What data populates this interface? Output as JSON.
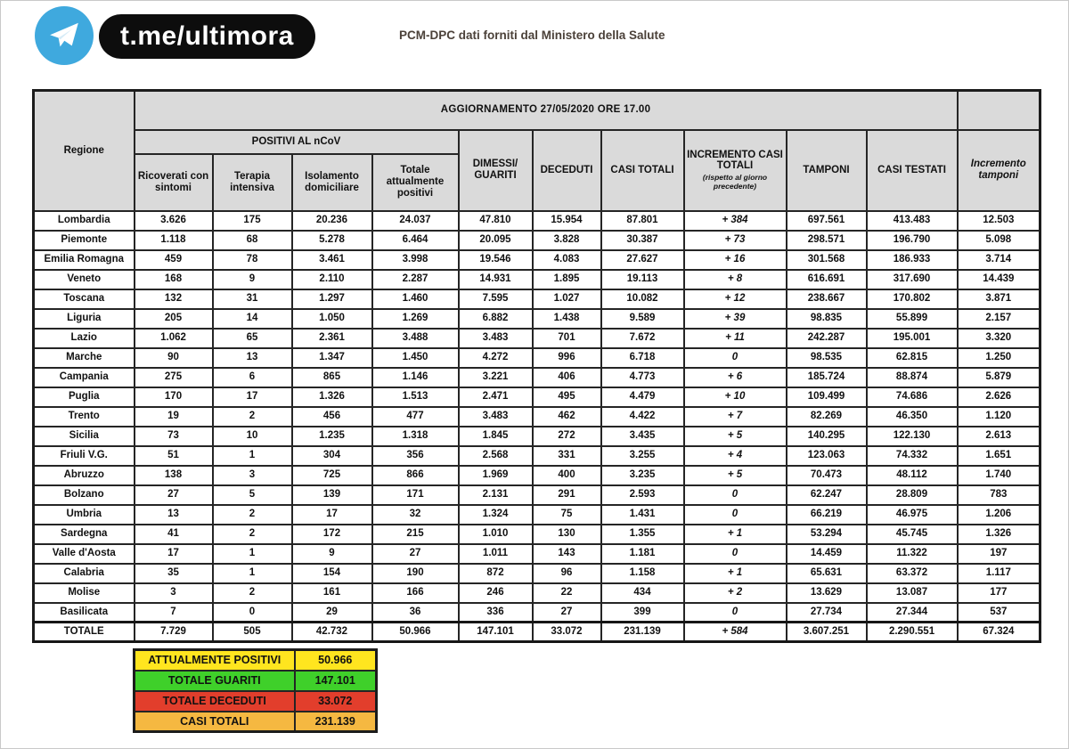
{
  "brand": {
    "channel": "t.me/ultimora",
    "source_note": "PCM-DPC dati forniti dal Ministero della Salute"
  },
  "colors": {
    "telegram_blue": "#3fa9de",
    "pill_black": "#0d0d0d",
    "yellow": "#ffe51f",
    "green": "#3fd02a",
    "red": "#e23e2c",
    "orange": "#f5b841",
    "gray": "#d2d2d2",
    "header_gray": "#dadada",
    "header_dark_gray": "#bfbfbf"
  },
  "headers": {
    "region": "Regione",
    "positivi_group": "POSITIVI AL nCoV",
    "ricoverati": "Ricoverati con sintomi",
    "terapia": "Terapia intensiva",
    "isolamento": "Isolamento domiciliare",
    "totale_positivi": "Totale attualmente positivi",
    "dimessi": "DIMESSI/ GUARITI",
    "deceduti": "DECEDUTI",
    "casi_totali": "CASI TOTALI",
    "incremento": "INCREMENTO CASI  TOTALI",
    "incremento_note": "(rispetto al giorno precedente)",
    "tamponi": "TAMPONI",
    "casi_testati": "CASI TESTATI",
    "incremento_tamponi": "Incremento tamponi"
  },
  "chart_data": {
    "type": "table",
    "title": "AGGIORNAMENTO 27/05/2020 ORE 17.00",
    "columns": [
      "Regione",
      "Ricoverati con sintomi",
      "Terapia intensiva",
      "Isolamento domiciliare",
      "Totale attualmente positivi",
      "DIMESSI/GUARITI",
      "DECEDUTI",
      "CASI TOTALI",
      "INCREMENTO CASI TOTALI (rispetto al giorno precedente)",
      "TAMPONI",
      "CASI TESTATI",
      "Incremento tamponi"
    ],
    "rows": [
      [
        "Lombardia",
        "3.626",
        "175",
        "20.236",
        "24.037",
        "47.810",
        "15.954",
        "87.801",
        "+ 384",
        "697.561",
        "413.483",
        "12.503"
      ],
      [
        "Piemonte",
        "1.118",
        "68",
        "5.278",
        "6.464",
        "20.095",
        "3.828",
        "30.387",
        "+ 73",
        "298.571",
        "196.790",
        "5.098"
      ],
      [
        "Emilia Romagna",
        "459",
        "78",
        "3.461",
        "3.998",
        "19.546",
        "4.083",
        "27.627",
        "+ 16",
        "301.568",
        "186.933",
        "3.714"
      ],
      [
        "Veneto",
        "168",
        "9",
        "2.110",
        "2.287",
        "14.931",
        "1.895",
        "19.113",
        "+ 8",
        "616.691",
        "317.690",
        "14.439"
      ],
      [
        "Toscana",
        "132",
        "31",
        "1.297",
        "1.460",
        "7.595",
        "1.027",
        "10.082",
        "+ 12",
        "238.667",
        "170.802",
        "3.871"
      ],
      [
        "Liguria",
        "205",
        "14",
        "1.050",
        "1.269",
        "6.882",
        "1.438",
        "9.589",
        "+ 39",
        "98.835",
        "55.899",
        "2.157"
      ],
      [
        "Lazio",
        "1.062",
        "65",
        "2.361",
        "3.488",
        "3.483",
        "701",
        "7.672",
        "+ 11",
        "242.287",
        "195.001",
        "3.320"
      ],
      [
        "Marche",
        "90",
        "13",
        "1.347",
        "1.450",
        "4.272",
        "996",
        "6.718",
        "0",
        "98.535",
        "62.815",
        "1.250"
      ],
      [
        "Campania",
        "275",
        "6",
        "865",
        "1.146",
        "3.221",
        "406",
        "4.773",
        "+ 6",
        "185.724",
        "88.874",
        "5.879"
      ],
      [
        "Puglia",
        "170",
        "17",
        "1.326",
        "1.513",
        "2.471",
        "495",
        "4.479",
        "+ 10",
        "109.499",
        "74.686",
        "2.626"
      ],
      [
        "Trento",
        "19",
        "2",
        "456",
        "477",
        "3.483",
        "462",
        "4.422",
        "+ 7",
        "82.269",
        "46.350",
        "1.120"
      ],
      [
        "Sicilia",
        "73",
        "10",
        "1.235",
        "1.318",
        "1.845",
        "272",
        "3.435",
        "+ 5",
        "140.295",
        "122.130",
        "2.613"
      ],
      [
        "Friuli V.G.",
        "51",
        "1",
        "304",
        "356",
        "2.568",
        "331",
        "3.255",
        "+ 4",
        "123.063",
        "74.332",
        "1.651"
      ],
      [
        "Abruzzo",
        "138",
        "3",
        "725",
        "866",
        "1.969",
        "400",
        "3.235",
        "+ 5",
        "70.473",
        "48.112",
        "1.740"
      ],
      [
        "Bolzano",
        "27",
        "5",
        "139",
        "171",
        "2.131",
        "291",
        "2.593",
        "0",
        "62.247",
        "28.809",
        "783"
      ],
      [
        "Umbria",
        "13",
        "2",
        "17",
        "32",
        "1.324",
        "75",
        "1.431",
        "0",
        "66.219",
        "46.975",
        "1.206"
      ],
      [
        "Sardegna",
        "41",
        "2",
        "172",
        "215",
        "1.010",
        "130",
        "1.355",
        "+ 1",
        "53.294",
        "45.745",
        "1.326"
      ],
      [
        "Valle d'Aosta",
        "17",
        "1",
        "9",
        "27",
        "1.011",
        "143",
        "1.181",
        "0",
        "14.459",
        "11.322",
        "197"
      ],
      [
        "Calabria",
        "35",
        "1",
        "154",
        "190",
        "872",
        "96",
        "1.158",
        "+ 1",
        "65.631",
        "63.372",
        "1.117"
      ],
      [
        "Molise",
        "3",
        "2",
        "161",
        "166",
        "246",
        "22",
        "434",
        "+ 2",
        "13.629",
        "13.087",
        "177"
      ],
      [
        "Basilicata",
        "7",
        "0",
        "29",
        "36",
        "336",
        "27",
        "399",
        "0",
        "27.734",
        "27.344",
        "537"
      ]
    ],
    "total_row": [
      "TOTALE",
      "7.729",
      "505",
      "42.732",
      "50.966",
      "147.101",
      "33.072",
      "231.139",
      "+ 584",
      "3.607.251",
      "2.290.551",
      "67.324"
    ]
  },
  "summary": {
    "rows": [
      {
        "label": "ATTUALMENTE POSITIVI",
        "value": "50.966",
        "color": "yellow"
      },
      {
        "label": "TOTALE GUARITI",
        "value": "147.101",
        "color": "green"
      },
      {
        "label": "TOTALE DECEDUTI",
        "value": "33.072",
        "color": "red"
      },
      {
        "label": "CASI TOTALI",
        "value": "231.139",
        "color": "orange"
      }
    ]
  }
}
